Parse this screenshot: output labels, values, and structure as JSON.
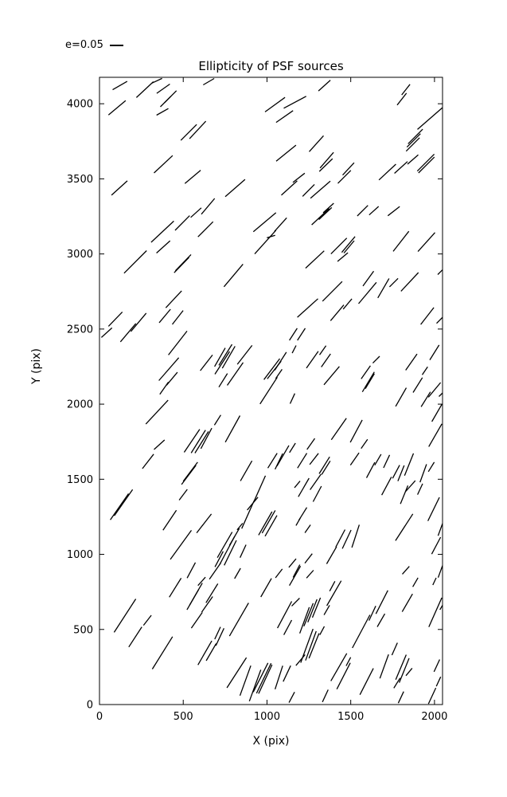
{
  "colors": {
    "line": "#000000",
    "background": "#ffffff"
  },
  "chart_data": {
    "type": "scatter",
    "mark": "line-segment",
    "title": "Ellipticity of PSF sources",
    "xlabel": "X (pix)",
    "ylabel": "Y (pix)",
    "xlim": [
      0,
      2048
    ],
    "ylim": [
      0,
      4176
    ],
    "xticks": [
      0,
      500,
      1000,
      1500,
      2000
    ],
    "yticks": [
      0,
      500,
      1000,
      1500,
      2000,
      2500,
      3000,
      3500,
      4000
    ],
    "grid": false,
    "legend": {
      "label": "e=0.05",
      "e_ref": 0.05,
      "position": "upper-left-outside"
    },
    "segment_format": [
      "x_pix",
      "y_pix",
      "angle_deg_ccw_from_x",
      "ellipticity"
    ],
    "segments": [
      [
        122,
        4121,
        30,
        0.066
      ],
      [
        271,
        4094,
        43,
        0.091
      ],
      [
        343,
        4153,
        25,
        0.044
      ],
      [
        381,
        4100,
        35,
        0.063
      ],
      [
        395,
        4015,
        45,
        0.059
      ],
      [
        424,
        4047,
        45,
        0.066
      ],
      [
        376,
        3946,
        29,
        0.053
      ],
      [
        105,
        3973,
        40,
        0.088
      ],
      [
        652,
        4147,
        30,
        0.05
      ],
      [
        533,
        3809,
        45,
        0.088
      ],
      [
        586,
        3825,
        47,
        0.094
      ],
      [
        381,
        3597,
        43,
        0.1
      ],
      [
        557,
        3513,
        40,
        0.081
      ],
      [
        119,
        3439,
        42,
        0.084
      ],
      [
        1343,
        4121,
        42,
        0.063
      ],
      [
        1048,
        3994,
        36,
        0.097
      ],
      [
        1167,
        4010,
        28,
        0.1
      ],
      [
        1105,
        3915,
        35,
        0.081
      ],
      [
        1114,
        3671,
        39,
        0.1
      ],
      [
        1295,
        3734,
        48,
        0.084
      ],
      [
        1190,
        3507,
        38,
        0.059
      ],
      [
        1133,
        3439,
        42,
        0.084
      ],
      [
        810,
        3439,
        41,
        0.103
      ],
      [
        1248,
        3423,
        45,
        0.066
      ],
      [
        1319,
        3428,
        41,
        0.103
      ],
      [
        1805,
        4031,
        52,
        0.059
      ],
      [
        1829,
        4094,
        52,
        0.053
      ],
      [
        1986,
        3914,
        41,
        0.153
      ],
      [
        1886,
        3782,
        45,
        0.081
      ],
      [
        1876,
        3756,
        45,
        0.075
      ],
      [
        1871,
        3729,
        45,
        0.075
      ],
      [
        1357,
        3624,
        49,
        0.081
      ],
      [
        1352,
        3592,
        44,
        0.072
      ],
      [
        1462,
        3513,
        45,
        0.072
      ],
      [
        1486,
        3566,
        47,
        0.066
      ],
      [
        1719,
        3545,
        43,
        0.091
      ],
      [
        1800,
        3576,
        42,
        0.069
      ],
      [
        1871,
        3629,
        41,
        0.056
      ],
      [
        1948,
        3608,
        45,
        0.094
      ],
      [
        1952,
        3592,
        45,
        0.088
      ],
      [
        376,
        3148,
        43,
        0.122
      ],
      [
        495,
        3206,
        45,
        0.081
      ],
      [
        576,
        3275,
        42,
        0.056
      ],
      [
        648,
        3317,
        50,
        0.081
      ],
      [
        633,
        3164,
        45,
        0.084
      ],
      [
        381,
        3047,
        42,
        0.072
      ],
      [
        214,
        2947,
        45,
        0.125
      ],
      [
        500,
        2942,
        46,
        0.088
      ],
      [
        490,
        2926,
        46,
        0.084
      ],
      [
        95,
        2566,
        46,
        0.078
      ],
      [
        443,
        2698,
        47,
        0.091
      ],
      [
        986,
        3211,
        40,
        0.116
      ],
      [
        990,
        3079,
        48,
        0.125
      ],
      [
        1081,
        3195,
        48,
        0.072
      ],
      [
        1024,
        3116,
        17,
        0.034
      ],
      [
        1319,
        3248,
        43,
        0.094
      ],
      [
        1348,
        3269,
        43,
        0.069
      ],
      [
        1367,
        3306,
        42,
        0.056
      ],
      [
        1286,
        2963,
        43,
        0.1
      ],
      [
        800,
        2857,
        50,
        0.116
      ],
      [
        1243,
        2640,
        42,
        0.109
      ],
      [
        1571,
        3288,
        45,
        0.059
      ],
      [
        1638,
        3288,
        42,
        0.05
      ],
      [
        1757,
        3285,
        38,
        0.059
      ],
      [
        1429,
        3053,
        45,
        0.088
      ],
      [
        1486,
        3063,
        50,
        0.081
      ],
      [
        1490,
        3047,
        50,
        0.063
      ],
      [
        1452,
        2979,
        40,
        0.053
      ],
      [
        1800,
        3084,
        52,
        0.1
      ],
      [
        1952,
        3079,
        48,
        0.1
      ],
      [
        1390,
        2751,
        45,
        0.109
      ],
      [
        1605,
        2836,
        54,
        0.072
      ],
      [
        1600,
        2740,
        50,
        0.109
      ],
      [
        1695,
        2772,
        60,
        0.088
      ],
      [
        1757,
        2809,
        45,
        0.047
      ],
      [
        1852,
        2814,
        47,
        0.1
      ],
      [
        1419,
        2608,
        50,
        0.081
      ],
      [
        1481,
        2667,
        50,
        0.053
      ],
      [
        1957,
        2587,
        52,
        0.084
      ],
      [
        2033,
        2561,
        45,
        0.038
      ],
      [
        2043,
        2889,
        45,
        0.044
      ],
      [
        43,
        2476,
        42,
        0.056
      ],
      [
        171,
        2476,
        50,
        0.094
      ],
      [
        233,
        2545,
        50,
        0.094
      ],
      [
        390,
        2587,
        50,
        0.069
      ],
      [
        467,
        2577,
        52,
        0.069
      ],
      [
        467,
        2407,
        52,
        0.119
      ],
      [
        414,
        2233,
        49,
        0.119
      ],
      [
        386,
        2106,
        55,
        0.059
      ],
      [
        433,
        2169,
        50,
        0.066
      ],
      [
        638,
        2275,
        52,
        0.078
      ],
      [
        343,
        1947,
        47,
        0.128
      ],
      [
        357,
        1730,
        42,
        0.056
      ],
      [
        552,
        1756,
        56,
        0.109
      ],
      [
        590,
        1751,
        58,
        0.106
      ],
      [
        610,
        1746,
        58,
        0.1
      ],
      [
        638,
        1772,
        62,
        0.091
      ],
      [
        1157,
        2465,
        57,
        0.056
      ],
      [
        1205,
        2465,
        57,
        0.056
      ],
      [
        733,
        2275,
        57,
        0.106
      ],
      [
        719,
        2312,
        60,
        0.084
      ],
      [
        752,
        2328,
        58,
        0.097
      ],
      [
        771,
        2312,
        60,
        0.1
      ],
      [
        810,
        2201,
        55,
        0.109
      ],
      [
        867,
        2328,
        52,
        0.094
      ],
      [
        738,
        2159,
        58,
        0.063
      ],
      [
        1029,
        2233,
        53,
        0.103
      ],
      [
        1043,
        2227,
        52,
        0.088
      ],
      [
        1081,
        2286,
        57,
        0.084
      ],
      [
        1071,
        2201,
        55,
        0.044
      ],
      [
        1162,
        2365,
        63,
        0.034
      ],
      [
        1010,
        2090,
        57,
        0.125
      ],
      [
        1152,
        2037,
        65,
        0.044
      ],
      [
        1271,
        2296,
        55,
        0.081
      ],
      [
        1333,
        2359,
        55,
        0.044
      ],
      [
        1352,
        2291,
        55,
        0.063
      ],
      [
        1386,
        2190,
        50,
        0.094
      ],
      [
        705,
        1894,
        58,
        0.047
      ],
      [
        795,
        1835,
        61,
        0.119
      ],
      [
        1152,
        1709,
        58,
        0.044
      ],
      [
        1262,
        1735,
        55,
        0.053
      ],
      [
        1590,
        2212,
        55,
        0.063
      ],
      [
        1605,
        2148,
        59,
        0.091
      ],
      [
        1614,
        2153,
        59,
        0.069
      ],
      [
        1652,
        2296,
        45,
        0.038
      ],
      [
        1862,
        2280,
        55,
        0.078
      ],
      [
        1800,
        2047,
        60,
        0.084
      ],
      [
        1900,
        2127,
        58,
        0.069
      ],
      [
        1943,
        2222,
        56,
        0.038
      ],
      [
        1948,
        2032,
        58,
        0.069
      ],
      [
        2000,
        2095,
        50,
        0.075
      ],
      [
        2052,
        2079,
        45,
        0.047
      ],
      [
        1429,
        1835,
        55,
        0.103
      ],
      [
        1533,
        1820,
        62,
        0.1
      ],
      [
        1581,
        1735,
        55,
        0.044
      ],
      [
        2005,
        1793,
        60,
        0.103
      ],
      [
        2000,
        2344,
        58,
        0.069
      ],
      [
        2014,
        1941,
        60,
        0.078
      ],
      [
        290,
        1619,
        52,
        0.072
      ],
      [
        533,
        1529,
        53,
        0.094
      ],
      [
        543,
        1550,
        53,
        0.094
      ],
      [
        119,
        1317,
        55,
        0.125
      ],
      [
        143,
        1344,
        55,
        0.125
      ],
      [
        419,
        1227,
        56,
        0.094
      ],
      [
        500,
        1397,
        53,
        0.053
      ],
      [
        624,
        1206,
        52,
        0.094
      ],
      [
        486,
        1063,
        54,
        0.141
      ],
      [
        548,
        894,
        62,
        0.069
      ],
      [
        690,
        889,
        55,
        0.078
      ],
      [
        876,
        1556,
        60,
        0.091
      ],
      [
        1033,
        1624,
        58,
        0.069
      ],
      [
        1071,
        1619,
        64,
        0.069
      ],
      [
        1095,
        1656,
        60,
        0.094
      ],
      [
        1210,
        1624,
        58,
        0.069
      ],
      [
        1281,
        1635,
        52,
        0.056
      ],
      [
        1343,
        1593,
        58,
        0.078
      ],
      [
        1352,
        1577,
        58,
        0.063
      ],
      [
        1181,
        1466,
        50,
        0.034
      ],
      [
        1219,
        1445,
        60,
        0.084
      ],
      [
        1290,
        1482,
        55,
        0.075
      ],
      [
        1300,
        1402,
        62,
        0.069
      ],
      [
        1214,
        1270,
        58,
        0.059
      ],
      [
        1186,
        1217,
        60,
        0.034
      ],
      [
        1243,
        1170,
        55,
        0.038
      ],
      [
        886,
        1264,
        66,
        0.119
      ],
      [
        957,
        1439,
        66,
        0.109
      ],
      [
        914,
        1338,
        50,
        0.066
      ],
      [
        990,
        1206,
        60,
        0.106
      ],
      [
        1010,
        1217,
        60,
        0.103
      ],
      [
        1024,
        1190,
        60,
        0.094
      ],
      [
        838,
        1185,
        50,
        0.034
      ],
      [
        748,
        1063,
        60,
        0.116
      ],
      [
        762,
        1026,
        62,
        0.125
      ],
      [
        781,
        1010,
        64,
        0.109
      ],
      [
        714,
        968,
        62,
        0.069
      ],
      [
        805,
        1116,
        60,
        0.078
      ],
      [
        824,
        873,
        60,
        0.047
      ],
      [
        857,
        1021,
        65,
        0.056
      ],
      [
        1071,
        873,
        52,
        0.044
      ],
      [
        1152,
        942,
        50,
        0.044
      ],
      [
        1176,
        889,
        62,
        0.056
      ],
      [
        1248,
        973,
        52,
        0.047
      ],
      [
        1257,
        868,
        48,
        0.041
      ],
      [
        1524,
        1635,
        55,
        0.059
      ],
      [
        1619,
        1561,
        62,
        0.069
      ],
      [
        1662,
        1630,
        60,
        0.05
      ],
      [
        1714,
        1619,
        65,
        0.056
      ],
      [
        1714,
        1455,
        62,
        0.081
      ],
      [
        1771,
        1550,
        62,
        0.059
      ],
      [
        1800,
        1540,
        68,
        0.066
      ],
      [
        1848,
        1598,
        68,
        0.094
      ],
      [
        1819,
        1397,
        68,
        0.078
      ],
      [
        1857,
        1455,
        48,
        0.056
      ],
      [
        1914,
        1434,
        65,
        0.047
      ],
      [
        1933,
        1540,
        70,
        0.075
      ],
      [
        1981,
        1582,
        58,
        0.044
      ],
      [
        2062,
        1661,
        55,
        0.031
      ],
      [
        1995,
        1301,
        64,
        0.103
      ],
      [
        1819,
        1180,
        57,
        0.125
      ],
      [
        2038,
        1174,
        70,
        0.063
      ],
      [
        1476,
        1100,
        65,
        0.081
      ],
      [
        1529,
        1121,
        72,
        0.094
      ],
      [
        1438,
        1106,
        62,
        0.078
      ],
      [
        1386,
        994,
        60,
        0.078
      ],
      [
        1829,
        894,
        48,
        0.041
      ],
      [
        2043,
        910,
        70,
        0.081
      ],
      [
        2010,
        1058,
        62,
        0.075
      ],
      [
        152,
        592,
        57,
        0.156
      ],
      [
        214,
        450,
        57,
        0.094
      ],
      [
        286,
        561,
        52,
        0.05
      ],
      [
        452,
        778,
        58,
        0.088
      ],
      [
        557,
        698,
        60,
        0.091
      ],
      [
        576,
        735,
        60,
        0.1
      ],
      [
        610,
        820,
        48,
        0.044
      ],
      [
        671,
        741,
        58,
        0.088
      ],
      [
        581,
        561,
        55,
        0.075
      ],
      [
        643,
        667,
        55,
        0.075
      ],
      [
        376,
        344,
        58,
        0.15
      ],
      [
        629,
        344,
        60,
        0.109
      ],
      [
        667,
        349,
        60,
        0.078
      ],
      [
        995,
        778,
        60,
        0.084
      ],
      [
        1167,
        857,
        60,
        0.088
      ],
      [
        833,
        566,
        60,
        0.15
      ],
      [
        719,
        450,
        65,
        0.075
      ],
      [
        705,
        476,
        65,
        0.053
      ],
      [
        1105,
        598,
        62,
        0.119
      ],
      [
        1124,
        513,
        62,
        0.066
      ],
      [
        1171,
        682,
        45,
        0.044
      ],
      [
        1224,
        561,
        70,
        0.109
      ],
      [
        1248,
        598,
        68,
        0.097
      ],
      [
        1271,
        624,
        68,
        0.097
      ],
      [
        1295,
        645,
        68,
        0.084
      ],
      [
        1200,
        296,
        50,
        0.056
      ],
      [
        1238,
        391,
        70,
        0.141
      ],
      [
        1262,
        391,
        70,
        0.122
      ],
      [
        1281,
        391,
        68,
        0.106
      ],
      [
        1329,
        492,
        62,
        0.038
      ],
      [
        819,
        212,
        57,
        0.141
      ],
      [
        871,
        159,
        70,
        0.125
      ],
      [
        929,
        127,
        70,
        0.131
      ],
      [
        962,
        180,
        63,
        0.128
      ],
      [
        981,
        175,
        64,
        0.131
      ],
      [
        990,
        169,
        65,
        0.125
      ],
      [
        1071,
        180,
        72,
        0.097
      ],
      [
        1119,
        206,
        65,
        0.069
      ],
      [
        1148,
        48,
        62,
        0.047
      ],
      [
        1348,
        58,
        65,
        0.053
      ],
      [
        1357,
        629,
        60,
        0.044
      ],
      [
        1400,
        741,
        60,
        0.113
      ],
      [
        1390,
        788,
        62,
        0.044
      ],
      [
        1562,
        487,
        62,
        0.147
      ],
      [
        1629,
        608,
        65,
        0.063
      ],
      [
        1686,
        682,
        63,
        0.103
      ],
      [
        1681,
        561,
        60,
        0.059
      ],
      [
        1838,
        677,
        60,
        0.081
      ],
      [
        1886,
        814,
        60,
        0.041
      ],
      [
        2000,
        820,
        65,
        0.031
      ],
      [
        2005,
        614,
        66,
        0.125
      ],
      [
        1762,
        370,
        66,
        0.053
      ],
      [
        1700,
        254,
        70,
        0.1
      ],
      [
        1595,
        153,
        63,
        0.116
      ],
      [
        1429,
        249,
        60,
        0.125
      ],
      [
        1457,
        190,
        63,
        0.116
      ],
      [
        1486,
        286,
        62,
        0.038
      ],
      [
        1800,
        249,
        67,
        0.106
      ],
      [
        1819,
        227,
        68,
        0.103
      ],
      [
        1848,
        217,
        50,
        0.038
      ],
      [
        1776,
        143,
        58,
        0.047
      ],
      [
        1800,
        48,
        65,
        0.05
      ],
      [
        1986,
        58,
        65,
        0.069
      ],
      [
        2014,
        259,
        65,
        0.053
      ],
      [
        2024,
        153,
        65,
        0.041
      ],
      [
        2048,
        661,
        60,
        0.041
      ]
    ]
  }
}
